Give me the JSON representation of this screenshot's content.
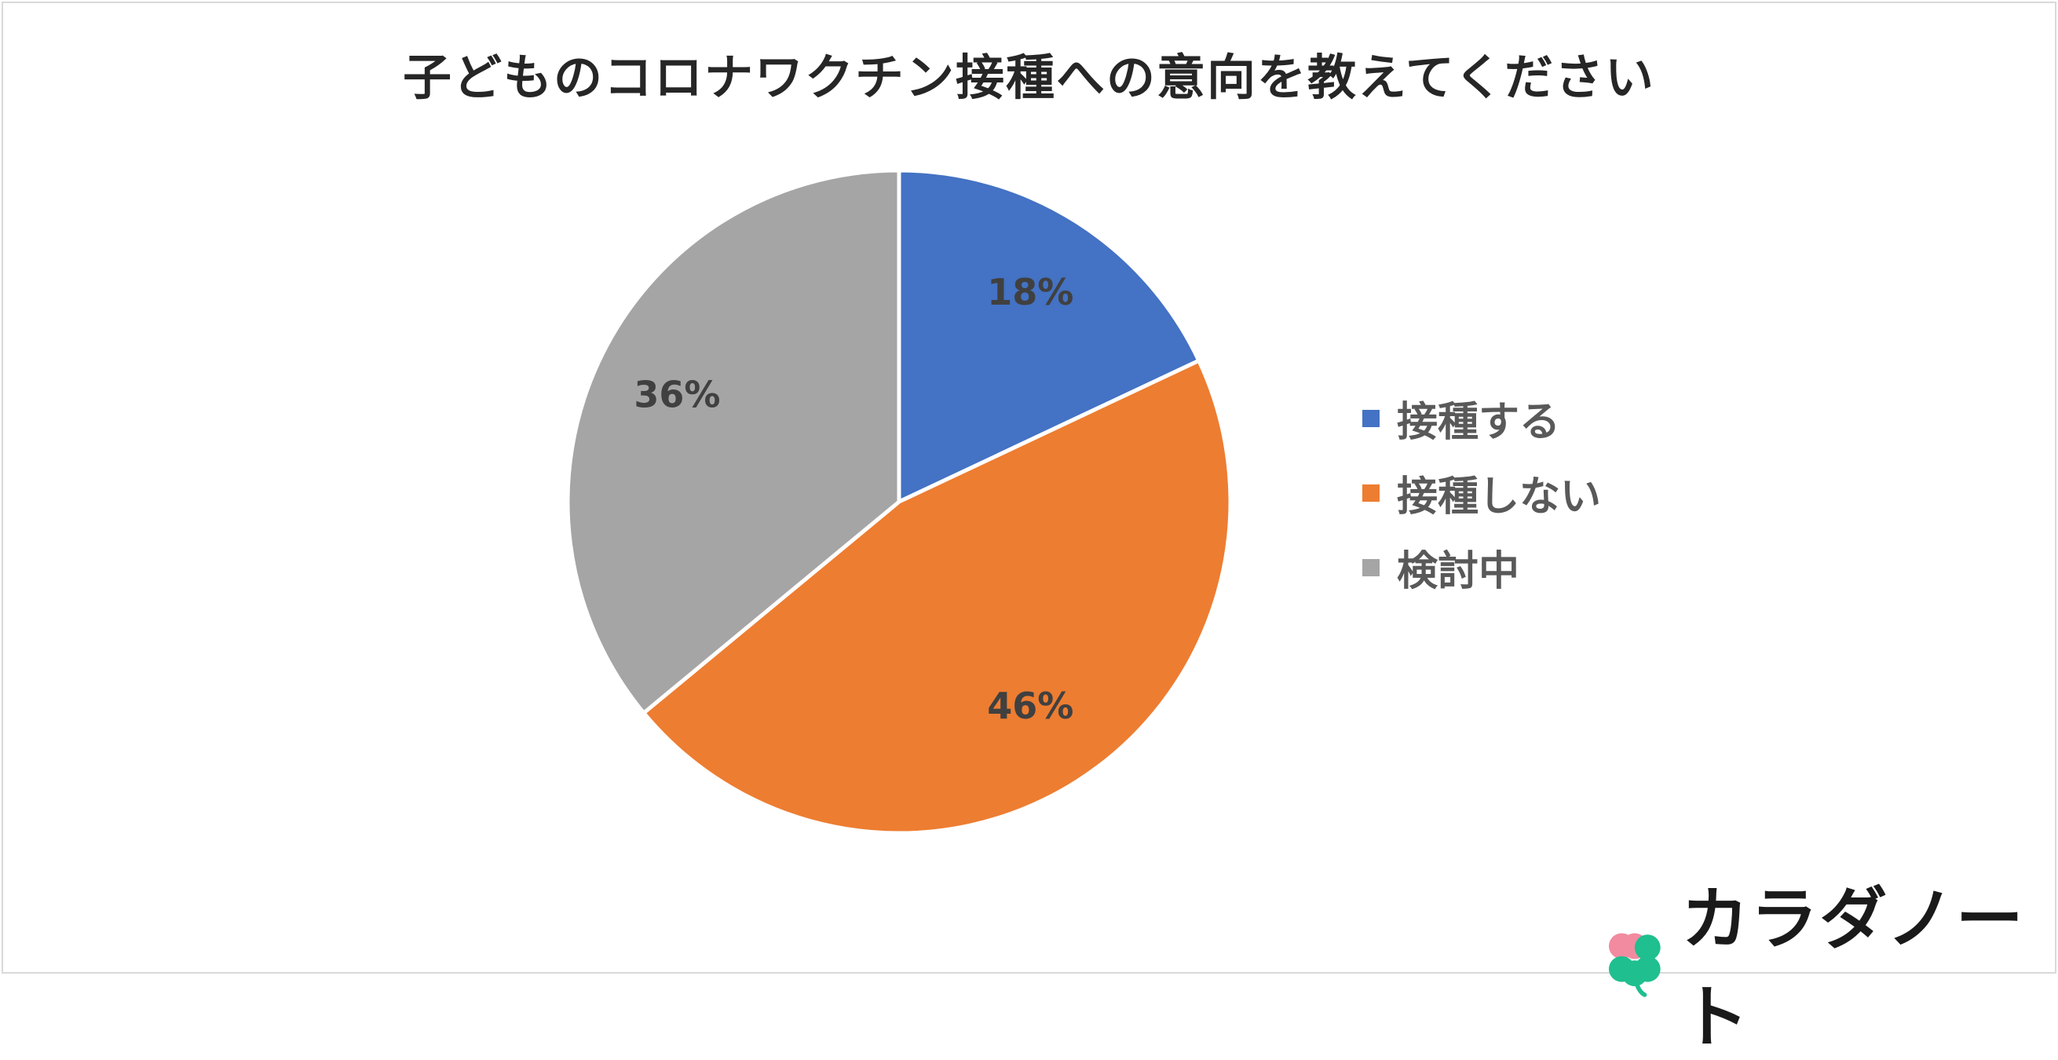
{
  "chart_data": {
    "type": "pie",
    "title": "子どものコロナワクチン接種への意向を教えてください",
    "categories": [
      "接種する",
      "接種しない",
      "検討中"
    ],
    "values": [
      18,
      46,
      36
    ],
    "data_labels": [
      "18%",
      "46%",
      "36%"
    ],
    "colors": [
      "#4472C4",
      "#ED7D31",
      "#A5A5A5"
    ],
    "legend_position": "right",
    "start_angle": "12 o'clock, clockwise"
  },
  "brand": {
    "name": "カラダノート",
    "icon": "four-leaf-clover-icon",
    "colors": [
      "#F28BA0",
      "#1FBF8F"
    ]
  }
}
